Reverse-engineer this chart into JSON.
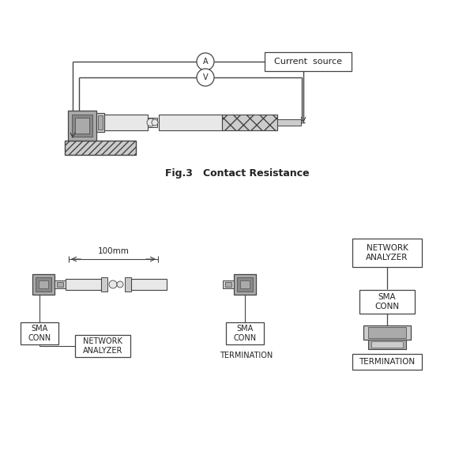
{
  "bg_color": "#ffffff",
  "line_color": "#444444",
  "fig3_caption": "Fig.3   Contact Resistance",
  "label_current_source": "Current  source",
  "label_A": "A",
  "label_V": "V",
  "label_sma_conn_left": "SMA\nCONN",
  "label_sma_conn_right": "SMA\nCONN",
  "label_network_analyzer_bot": "NETWORK\nANALYZER",
  "label_termination_bot": "TERMINATION",
  "label_100mm": "100mm",
  "label_network_analyzer_right": "NETWORK\nANALYZER",
  "label_sma_conn_right2": "SMA\nCONN",
  "label_termination_right": "TERMINATION",
  "text_color": "#222222",
  "gray_dark": "#888888",
  "gray_mid": "#aaaaaa",
  "gray_light": "#cccccc",
  "gray_vlight": "#e8e8e8"
}
